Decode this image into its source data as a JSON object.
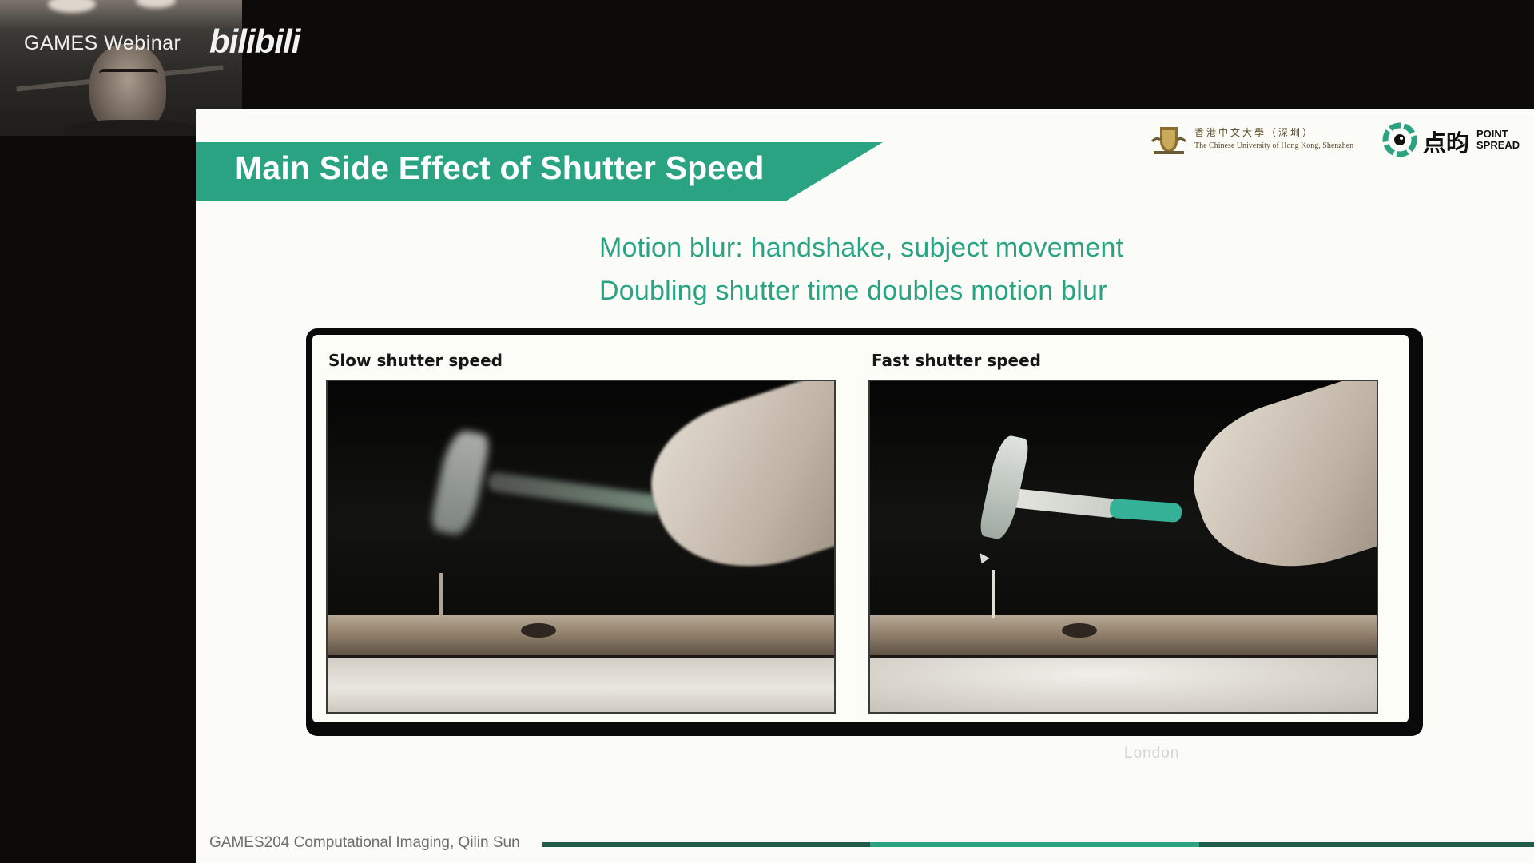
{
  "webcam": {
    "overlay_text": "GAMES Webinar",
    "logo_text": "bilibili"
  },
  "slide": {
    "title": "Main Side Effect of Shutter Speed",
    "logos": {
      "cuhk_name_cn": "香港中文大學（深圳）",
      "cuhk_name_en": "The Chinese University of Hong Kong, Shenzhen",
      "pointspread_cn": "点昀",
      "pointspread_en_line1": "POINT",
      "pointspread_en_line2": "SPREAD"
    },
    "bullets": [
      "Motion blur: handshake, subject movement",
      "Doubling shutter time doubles motion blur"
    ],
    "figure": {
      "panels": [
        {
          "label": "Slow shutter speed"
        },
        {
          "label": "Fast shutter speed"
        }
      ]
    },
    "watermark": "London",
    "footer": "GAMES204 Computational Imaging, Qilin Sun"
  },
  "colors": {
    "accent": "#2aa383",
    "accent_dark": "#1f5a4b",
    "background": "#0c0b0a",
    "slide_bg": "#fbfbf8"
  }
}
